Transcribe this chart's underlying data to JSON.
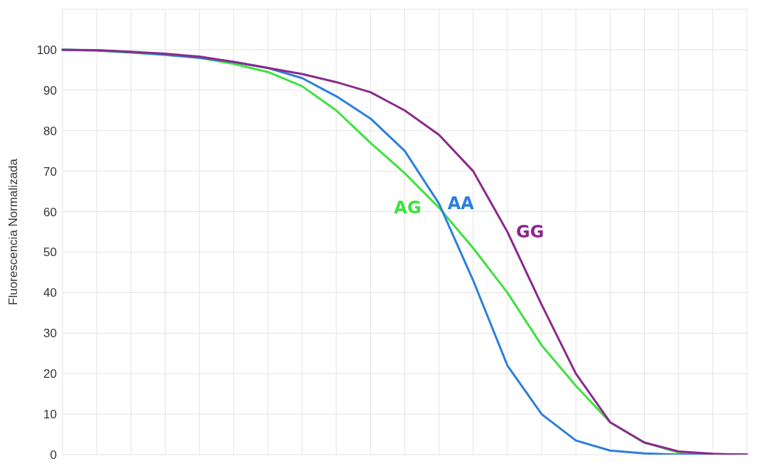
{
  "chart_data": {
    "type": "line",
    "ylabel": "Fluorescencia Normalizada",
    "categories": [
      null,
      null,
      null,
      null,
      null,
      null,
      null,
      null,
      null,
      null,
      null,
      null,
      null,
      null,
      null,
      null,
      null,
      null,
      null,
      null,
      null
    ],
    "ylim": [
      0,
      110
    ],
    "yticks": [
      0,
      10,
      20,
      30,
      40,
      50,
      60,
      70,
      80,
      90,
      100,
      {
        "value": 110,
        "label": null
      }
    ],
    "grid": true,
    "marker": "none",
    "series": [
      {
        "name": "AG",
        "color": "#3de23d",
        "values": [
          100,
          99.8,
          99.3,
          98.7,
          98,
          96.5,
          94.5,
          91,
          85,
          77,
          69.5,
          61,
          51,
          40,
          27,
          17,
          8,
          3,
          0.5,
          0.1,
          0
        ]
      },
      {
        "name": "AA",
        "color": "#2b7fde",
        "values": [
          100,
          99.8,
          99.4,
          98.8,
          98,
          97,
          95.5,
          93,
          88.5,
          83,
          75,
          62,
          43,
          22,
          10,
          3.5,
          1,
          0.3,
          0,
          0,
          0
        ]
      },
      {
        "name": "GG",
        "color": "#8b2a8b",
        "values": [
          100,
          99.9,
          99.5,
          99,
          98.3,
          97,
          95.5,
          94,
          92,
          89.5,
          85,
          79,
          70,
          55,
          37,
          20,
          8,
          3,
          0.8,
          0.2,
          0
        ]
      }
    ]
  }
}
